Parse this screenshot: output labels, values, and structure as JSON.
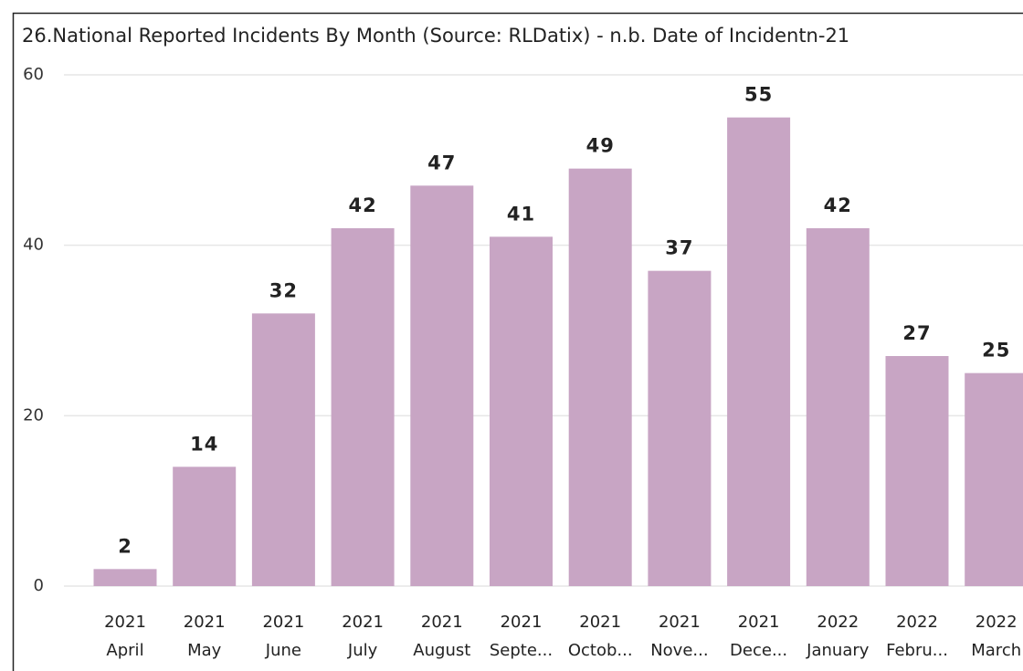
{
  "chart_data": {
    "type": "bar",
    "title": "26.National Reported Incidents By Month (Source: RLDatix) - n.b. Date of Incidentn-21",
    "categories": [
      {
        "year": "2021",
        "month": "April"
      },
      {
        "year": "2021",
        "month": "May"
      },
      {
        "year": "2021",
        "month": "June"
      },
      {
        "year": "2021",
        "month": "July"
      },
      {
        "year": "2021",
        "month": "August"
      },
      {
        "year": "2021",
        "month": "Septe..."
      },
      {
        "year": "2021",
        "month": "Octob..."
      },
      {
        "year": "2021",
        "month": "Nove..."
      },
      {
        "year": "2021",
        "month": "Dece..."
      },
      {
        "year": "2022",
        "month": "January"
      },
      {
        "year": "2022",
        "month": "Febru..."
      },
      {
        "year": "2022",
        "month": "March"
      }
    ],
    "values": [
      2,
      14,
      32,
      42,
      47,
      41,
      49,
      37,
      55,
      42,
      27,
      25
    ],
    "color": "#c8a5c4",
    "ylim": [
      0,
      60
    ],
    "yticks": [
      0,
      20,
      40,
      60
    ],
    "grid": true
  }
}
